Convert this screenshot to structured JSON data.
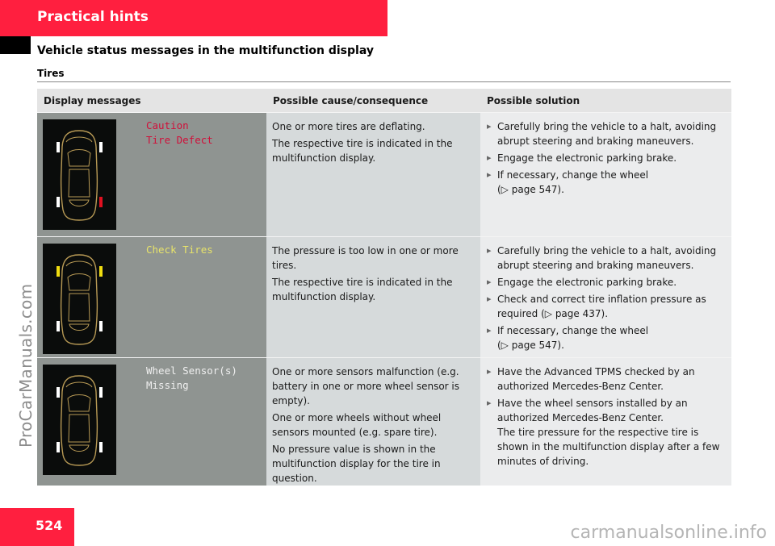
{
  "header": {
    "chapter": "Practical hints",
    "subtitle": "Vehicle status messages in the multifunction display",
    "section": "Tires"
  },
  "table": {
    "columns": [
      "Display messages",
      "Possible cause/consequence",
      "Possible solution"
    ],
    "rows": [
      {
        "message": "Caution\nTire Defect",
        "message_color": "#d0103a",
        "tire_colors": {
          "front_left": "#ffffff",
          "front_right": "#ffffff",
          "rear_left": "#ffffff",
          "rear_right": "#e01020"
        },
        "cause": [
          "One or more tires are deflating.",
          "The respective tire is indicated in the multifunction display."
        ],
        "solution": [
          "Carefully bring the vehicle to a halt, avoiding abrupt steering and braking maneuvers.",
          "Engage the electronic parking brake.",
          "If necessary, change the wheel"
        ],
        "solution_ref": "(▷ page 547)."
      },
      {
        "message": "Check Tires",
        "message_color": "#e7e36a",
        "tire_colors": {
          "front_left": "#f0dd10",
          "front_right": "#f0dd10",
          "rear_left": "#ffffff",
          "rear_right": "#ffffff"
        },
        "cause": [
          "The pressure is too low in one or more tires.",
          "The respective tire is indicated in the multifunction display."
        ],
        "solution": [
          "Carefully bring the vehicle to a halt, avoiding abrupt steering and braking maneuvers.",
          "Engage the electronic parking brake.",
          "Check and correct tire inflation pressure as required (▷ page 437).",
          "If necessary, change the wheel"
        ],
        "solution_ref": "(▷ page 547)."
      },
      {
        "message": "Wheel Sensor(s)\nMissing",
        "message_color": "#efefef",
        "tire_colors": {
          "front_left": "#ffffff",
          "front_right": "#ffffff",
          "rear_left": "#ffffff",
          "rear_right": "#ffffff"
        },
        "cause": [
          "One or more sensors malfunction (e.g. battery in one or more wheel sensor is empty).",
          "One or more wheels without wheel sensors mounted (e.g. spare tire).",
          "No pressure value is shown in the multifunction display for the tire in question."
        ],
        "solution": [
          "Have the Advanced TPMS checked by an authorized Mercedes-Benz Center.",
          "Have the wheel sensors installed by an authorized Mercedes-Benz Center.\nThe tire pressure for the respective tire is shown in the multifunction display after a few minutes of driving."
        ]
      }
    ]
  },
  "page_number": "524",
  "watermarks": {
    "side": "ProCarManuals.com",
    "bottom": "carmanualsonline.info"
  }
}
